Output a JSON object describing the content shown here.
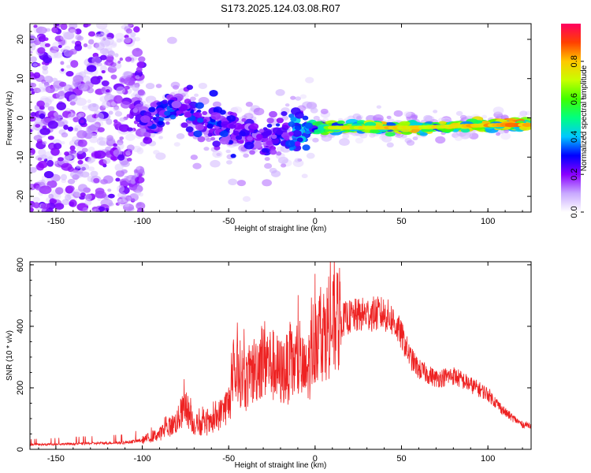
{
  "title": "S173.2025.124.03.08.R07",
  "chart_data": [
    {
      "type": "heatmap",
      "xlabel": "Height of straight line (km)",
      "ylabel": "Frequency (Hz)",
      "xlim": [
        -165,
        125
      ],
      "ylim": [
        -24,
        24
      ],
      "x_ticks": [
        -150,
        -100,
        -50,
        0,
        50,
        100
      ],
      "y_ticks": [
        20,
        10,
        0,
        -10,
        -20
      ],
      "colorbar": {
        "label": "Normalized spectral amplitude",
        "range": [
          0,
          1
        ],
        "ticks": [
          "0.0",
          "0.2",
          "0.4",
          "0.6",
          "0.8"
        ],
        "colors": [
          "#ffffff",
          "#c8a8ff",
          "#8a00ff",
          "#0000ff",
          "#00c8ff",
          "#00ff80",
          "#40ff00",
          "#c8ff00",
          "#ffc800",
          "#ff4000",
          "#ff0060"
        ]
      },
      "ridge": {
        "x": [
          -100,
          -90,
          -82,
          -75,
          -65,
          -55,
          -45,
          -35,
          -25,
          -15,
          -8,
          0,
          10,
          30,
          50,
          70,
          90,
          110,
          124
        ],
        "frequency": [
          -1.5,
          0,
          3,
          1,
          -1,
          -2,
          -4,
          -5,
          -5.5,
          -4,
          -3,
          -2.5,
          -2.5,
          -2.5,
          -2.5,
          -2.3,
          -2,
          -1.8,
          -1.8
        ],
        "peak_amplitude": [
          0.3,
          0.35,
          0.35,
          0.35,
          0.35,
          0.35,
          0.3,
          0.3,
          0.3,
          0.35,
          0.5,
          0.55,
          0.75,
          0.8,
          0.85,
          0.8,
          0.85,
          0.9,
          0.9
        ]
      },
      "noise_region": {
        "x_range": [
          -165,
          -100
        ],
        "amplitude": [
          0.0,
          0.2
        ]
      }
    },
    {
      "type": "line",
      "xlabel": "Height of straight line (km)",
      "ylabel": "SNR (10 * v/v)",
      "xlim": [
        -165,
        125
      ],
      "ylim": [
        0,
        610
      ],
      "x_ticks": [
        -150,
        -100,
        -50,
        0,
        50,
        100
      ],
      "y_ticks": [
        0,
        200,
        400,
        600
      ],
      "series": [
        {
          "color": "#ee2222",
          "envelope_x": [
            -165,
            -140,
            -110,
            -100,
            -90,
            -80,
            -75,
            -70,
            -60,
            -50,
            -45,
            -40,
            -30,
            -20,
            -10,
            -5,
            0,
            5,
            10,
            15,
            20,
            30,
            40,
            45,
            50,
            55,
            60,
            70,
            80,
            90,
            100,
            110,
            120,
            124
          ],
          "envelope_y": [
            15,
            18,
            22,
            30,
            50,
            90,
            140,
            80,
            80,
            150,
            260,
            220,
            300,
            250,
            280,
            240,
            370,
            380,
            400,
            420,
            430,
            440,
            440,
            420,
            370,
            300,
            260,
            230,
            240,
            210,
            180,
            120,
            80,
            80
          ]
        }
      ]
    }
  ]
}
